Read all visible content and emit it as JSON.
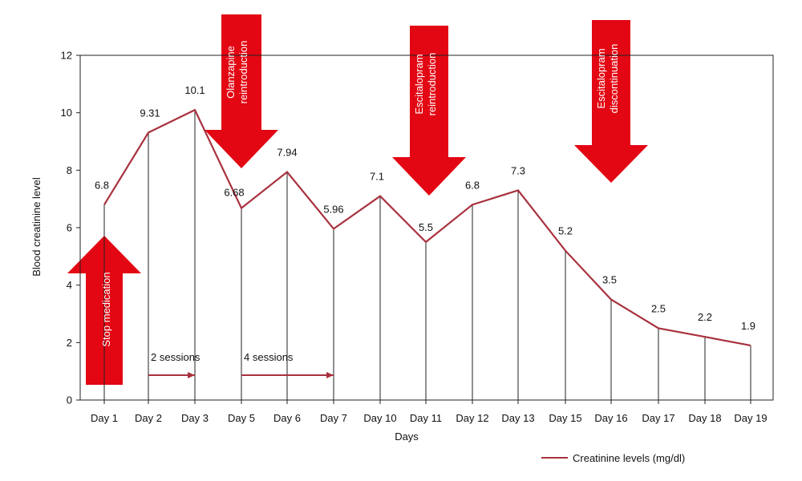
{
  "chart_data": {
    "type": "line",
    "title": "",
    "xlabel": "Days",
    "ylabel": "Blood creatinine level",
    "categories": [
      "Day 1",
      "Day 2",
      "Day 3",
      "Day 5",
      "Day 6",
      "Day 7",
      "Day 10",
      "Day 11",
      "Day 12",
      "Day 13",
      "Day 15",
      "Day 16",
      "Day 17",
      "Day 18",
      "Day 19"
    ],
    "series": [
      {
        "name": "Creatinine levels (mg/dl)",
        "values": [
          6.8,
          9.31,
          10.1,
          6.68,
          7.94,
          5.96,
          7.1,
          5.5,
          6.8,
          7.3,
          5.2,
          3.5,
          2.5,
          2.2,
          1.9
        ],
        "labels": [
          "6.8",
          "9.31",
          "10.1",
          "6.68",
          "7.94",
          "5.96",
          "7.1",
          "5.5",
          "6.8",
          "7.3",
          "5.2",
          "3.5",
          "2.5",
          "2.2",
          "1.9"
        ],
        "color": "#a8323e"
      }
    ],
    "ylim": [
      0,
      12
    ],
    "yticks": [
      "0",
      "2",
      "4",
      "6",
      "8",
      "10",
      "12"
    ],
    "grid": false,
    "drop_lines": true,
    "legend": {
      "placement": "bottom-right",
      "label": "Creatinine levels (mg/dl)"
    },
    "annotations": {
      "arrows": [
        {
          "text": "Stop medication",
          "direction": "up",
          "at_category": "Day 1",
          "color": "#e30613"
        },
        {
          "text_lines": [
            "Olanzapine",
            "reintroduction"
          ],
          "direction": "down",
          "at_category": "Day 5",
          "color": "#e30613"
        },
        {
          "text_lines": [
            "Escitalopram",
            "reintroduction"
          ],
          "direction": "down",
          "at_category": "Day 11",
          "color": "#e30613"
        },
        {
          "text_lines": [
            "Escitalopram",
            "discontinuation"
          ],
          "direction": "down",
          "at_category": "Day 16",
          "color": "#e30613"
        }
      ],
      "sessions": [
        {
          "text": "2 sessions",
          "from": "Day 2",
          "to": "Day 3"
        },
        {
          "text": "4 sessions",
          "from": "Day 5",
          "to": "Day 7"
        }
      ]
    }
  }
}
